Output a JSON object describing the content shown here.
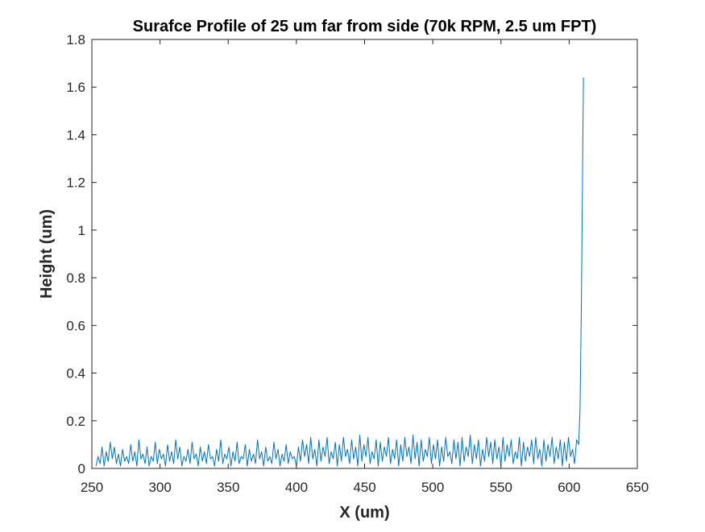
{
  "chart_data": {
    "type": "line",
    "title": "Surafce Profile of 25 um far from side (70k RPM, 2.5 um FPT)",
    "xlabel": "X (um)",
    "ylabel": "Height (um)",
    "xlim": [
      250,
      650
    ],
    "ylim": [
      0,
      1.8
    ],
    "xticks": [
      "250",
      "300",
      "350",
      "400",
      "450",
      "500",
      "550",
      "600",
      "650"
    ],
    "yticks": [
      "0",
      "0.2",
      "0.4",
      "0.6",
      "0.8",
      "1",
      "1.2",
      "1.4",
      "1.6",
      "1.8"
    ],
    "grid": false,
    "box": true,
    "series": [
      {
        "color": "#0072BD",
        "points": [
          [
            253,
            0.01
          ],
          [
            254.5,
            0.05
          ],
          [
            256,
            0.02
          ],
          [
            257.5,
            0.09
          ],
          [
            259,
            0.01
          ],
          [
            260.5,
            0.07
          ],
          [
            262,
            0.03
          ],
          [
            263.5,
            0.11
          ],
          [
            265,
            0.04
          ],
          [
            266.5,
            0.09
          ],
          [
            268,
            0.02
          ],
          [
            269.5,
            0.06
          ],
          [
            271,
            0.01
          ],
          [
            272.5,
            0.08
          ],
          [
            274,
            0.03
          ],
          [
            275.5,
            0.05
          ],
          [
            277,
            0.02
          ],
          [
            278.5,
            0.1
          ],
          [
            280,
            0.03
          ],
          [
            281.5,
            0.07
          ],
          [
            283,
            0.01
          ],
          [
            284.5,
            0.12
          ],
          [
            286,
            0.04
          ],
          [
            287.5,
            0.06
          ],
          [
            289,
            0.02
          ],
          [
            290.5,
            0.09
          ],
          [
            292,
            0.01
          ],
          [
            293.5,
            0.05
          ],
          [
            295,
            0.03
          ],
          [
            296.5,
            0.11
          ],
          [
            298,
            0.02
          ],
          [
            299.5,
            0.08
          ],
          [
            301,
            0.04
          ],
          [
            302.5,
            0.06
          ],
          [
            304,
            0.01
          ],
          [
            305.5,
            0.1
          ],
          [
            307,
            0.03
          ],
          [
            308.5,
            0.07
          ],
          [
            310,
            0.02
          ],
          [
            311.5,
            0.12
          ],
          [
            313,
            0.04
          ],
          [
            314.5,
            0.09
          ],
          [
            316,
            0.01
          ],
          [
            317.5,
            0.05
          ],
          [
            319,
            0.03
          ],
          [
            320.5,
            0.08
          ],
          [
            322,
            0.02
          ],
          [
            323.5,
            0.11
          ],
          [
            325,
            0.04
          ],
          [
            326.5,
            0.06
          ],
          [
            328,
            0.01
          ],
          [
            329.5,
            0.09
          ],
          [
            331,
            0.03
          ],
          [
            332.5,
            0.07
          ],
          [
            334,
            0.02
          ],
          [
            335.5,
            0.1
          ],
          [
            337,
            0.04
          ],
          [
            338.5,
            0.05
          ],
          [
            340,
            0.01
          ],
          [
            341.5,
            0.08
          ],
          [
            343,
            0.03
          ],
          [
            344.5,
            0.12
          ],
          [
            346,
            0.02
          ],
          [
            347.5,
            0.06
          ],
          [
            349,
            0.04
          ],
          [
            350.5,
            0.09
          ],
          [
            352,
            0.01
          ],
          [
            353.5,
            0.07
          ],
          [
            355,
            0.03
          ],
          [
            356.5,
            0.11
          ],
          [
            358,
            0.02
          ],
          [
            359.5,
            0.05
          ],
          [
            361,
            0.04
          ],
          [
            362.5,
            0.1
          ],
          [
            364,
            0.01
          ],
          [
            365.5,
            0.08
          ],
          [
            367,
            0.03
          ],
          [
            368.5,
            0.06
          ],
          [
            370,
            0.02
          ],
          [
            371.5,
            0.12
          ],
          [
            373,
            0.04
          ],
          [
            374.5,
            0.07
          ],
          [
            376,
            0.01
          ],
          [
            377.5,
            0.09
          ],
          [
            379,
            0.03
          ],
          [
            380.5,
            0.05
          ],
          [
            382,
            0.02
          ],
          [
            383.5,
            0.11
          ],
          [
            385,
            0.04
          ],
          [
            386.5,
            0.08
          ],
          [
            388,
            0.01
          ],
          [
            389.5,
            0.06
          ],
          [
            391,
            0.03
          ],
          [
            392.5,
            0.1
          ],
          [
            394,
            0.02
          ],
          [
            395.5,
            0.07
          ],
          [
            397,
            0.04
          ],
          [
            398.5,
            0.05
          ],
          [
            400,
            0.01
          ],
          [
            401.5,
            0.09
          ],
          [
            403,
            0.03
          ],
          [
            404.5,
            0.12
          ],
          [
            406,
            0.05
          ],
          [
            407.5,
            0.1
          ],
          [
            409,
            0.02
          ],
          [
            410.5,
            0.13
          ],
          [
            412,
            0.04
          ],
          [
            413.5,
            0.08
          ],
          [
            415,
            0.01
          ],
          [
            416.5,
            0.12
          ],
          [
            418,
            0.03
          ],
          [
            419.5,
            0.09
          ],
          [
            421,
            0.05
          ],
          [
            422.5,
            0.13
          ],
          [
            424,
            0.02
          ],
          [
            425.5,
            0.07
          ],
          [
            427,
            0.04
          ],
          [
            428.5,
            0.11
          ],
          [
            430,
            0.01
          ],
          [
            431.5,
            0.1
          ],
          [
            433,
            0.03
          ],
          [
            434.5,
            0.13
          ],
          [
            436,
            0.05
          ],
          [
            437.5,
            0.08
          ],
          [
            439,
            0.02
          ],
          [
            440.5,
            0.12
          ],
          [
            442,
            0.04
          ],
          [
            443.5,
            0.09
          ],
          [
            445,
            0.01
          ],
          [
            446.5,
            0.14
          ],
          [
            448,
            0.03
          ],
          [
            449.5,
            0.1
          ],
          [
            451,
            0.05
          ],
          [
            452.5,
            0.13
          ],
          [
            454,
            0.02
          ],
          [
            455.5,
            0.07
          ],
          [
            457,
            0.04
          ],
          [
            458.5,
            0.12
          ],
          [
            460,
            0.01
          ],
          [
            461.5,
            0.11
          ],
          [
            463,
            0.03
          ],
          [
            464.5,
            0.09
          ],
          [
            466,
            0.05
          ],
          [
            467.5,
            0.13
          ],
          [
            469,
            0.02
          ],
          [
            470.5,
            0.08
          ],
          [
            472,
            0.04
          ],
          [
            473.5,
            0.12
          ],
          [
            475,
            0.01
          ],
          [
            476.5,
            0.1
          ],
          [
            478,
            0.03
          ],
          [
            479.5,
            0.13
          ],
          [
            481,
            0.05
          ],
          [
            482.5,
            0.09
          ],
          [
            484,
            0.02
          ],
          [
            485.5,
            0.14
          ],
          [
            487,
            0.04
          ],
          [
            488.5,
            0.11
          ],
          [
            490,
            0.01
          ],
          [
            491.5,
            0.12
          ],
          [
            493,
            0.03
          ],
          [
            494.5,
            0.08
          ],
          [
            496,
            0.05
          ],
          [
            497.5,
            0.13
          ],
          [
            499,
            0.02
          ],
          [
            500.5,
            0.1
          ],
          [
            502,
            0.04
          ],
          [
            503.5,
            0.12
          ],
          [
            505,
            0.01
          ],
          [
            506.5,
            0.09
          ],
          [
            508,
            0.03
          ],
          [
            509.5,
            0.13
          ],
          [
            511,
            0.05
          ],
          [
            512.5,
            0.07
          ],
          [
            514,
            0.02
          ],
          [
            515.5,
            0.12
          ],
          [
            517,
            0.04
          ],
          [
            518.5,
            0.11
          ],
          [
            520,
            0.01
          ],
          [
            521.5,
            0.13
          ],
          [
            523,
            0.03
          ],
          [
            524.5,
            0.09
          ],
          [
            526,
            0.05
          ],
          [
            527.5,
            0.14
          ],
          [
            529,
            0.02
          ],
          [
            530.5,
            0.1
          ],
          [
            532,
            0.04
          ],
          [
            533.5,
            0.12
          ],
          [
            535,
            0.01
          ],
          [
            536.5,
            0.08
          ],
          [
            538,
            0.03
          ],
          [
            539.5,
            0.13
          ],
          [
            541,
            0.05
          ],
          [
            542.5,
            0.11
          ],
          [
            544,
            0.02
          ],
          [
            545.5,
            0.12
          ],
          [
            547,
            0.04
          ],
          [
            548.5,
            0.09
          ],
          [
            550,
            0.01
          ],
          [
            551.5,
            0.13
          ],
          [
            553,
            0.03
          ],
          [
            554.5,
            0.1
          ],
          [
            556,
            0.05
          ],
          [
            557.5,
            0.12
          ],
          [
            559,
            0.02
          ],
          [
            560.5,
            0.07
          ],
          [
            562,
            0.04
          ],
          [
            563.5,
            0.13
          ],
          [
            565,
            0.01
          ],
          [
            566.5,
            0.11
          ],
          [
            568,
            0.03
          ],
          [
            569.5,
            0.09
          ],
          [
            571,
            0.05
          ],
          [
            572.5,
            0.12
          ],
          [
            574,
            0.02
          ],
          [
            575.5,
            0.13
          ],
          [
            577,
            0.04
          ],
          [
            578.5,
            0.08
          ],
          [
            580,
            0.01
          ],
          [
            581.5,
            0.12
          ],
          [
            583,
            0.03
          ],
          [
            584.5,
            0.1
          ],
          [
            586,
            0.05
          ],
          [
            587.5,
            0.13
          ],
          [
            589,
            0.02
          ],
          [
            590.5,
            0.09
          ],
          [
            592,
            0.04
          ],
          [
            593.5,
            0.12
          ],
          [
            595,
            0.01
          ],
          [
            596.5,
            0.11
          ],
          [
            598,
            0.03
          ],
          [
            599.5,
            0.13
          ],
          [
            601,
            0.05
          ],
          [
            602.5,
            0.08
          ],
          [
            604,
            0.02
          ],
          [
            605.5,
            0.12
          ],
          [
            607,
            0.1
          ],
          [
            608,
            0.25
          ],
          [
            609,
            0.7
          ],
          [
            610,
            1.35
          ],
          [
            610.5,
            1.64
          ]
        ]
      }
    ]
  }
}
